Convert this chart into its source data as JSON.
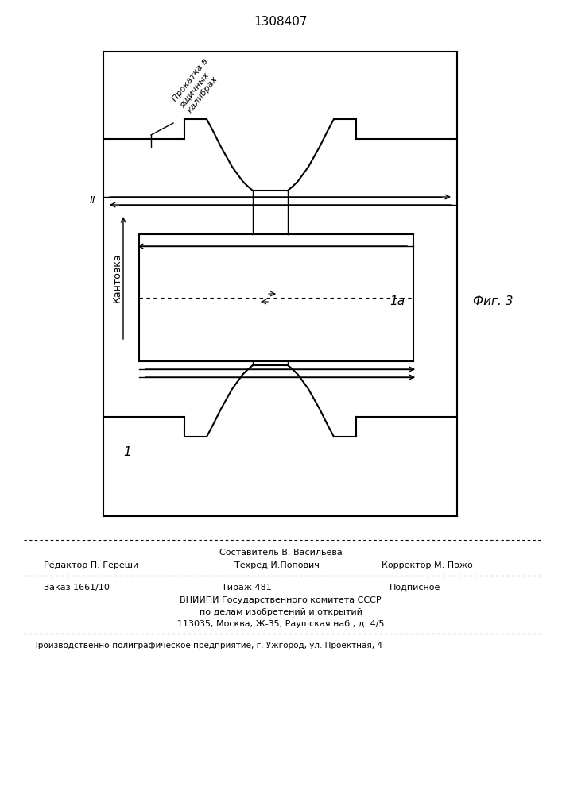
{
  "title": "1308407",
  "fig_label": "Фиг. 3",
  "label_1": "1",
  "label_1a": "1а",
  "label_II": "II",
  "kantovka_text": "Кантовка",
  "prokatka_text": "Прокатка в\nящичных\nкалибрах",
  "bg_color": "#ffffff",
  "line_color": "#000000",
  "footer_line1": "Составитель В. Васильева",
  "footer_line2_left": "Редактор П. Гереши",
  "footer_line2_mid": "Техред И.Попович",
  "footer_line2_right": "Корректор М. Пожо",
  "footer_line3_left": "Заказ 1661/10",
  "footer_line3_mid": "Тираж 481",
  "footer_line3_right": "Подписное",
  "footer_line4": "ВНИИПИ Государственного комитета СССР",
  "footer_line5": "по делам изобретений и открытий",
  "footer_line6": "113035, Москва, Ж-35, Раушская наб., д. 4/5",
  "footer_line7": "Производственно-полиграфическое предприятие, г. Ужгород, ул. Проектная, 4"
}
